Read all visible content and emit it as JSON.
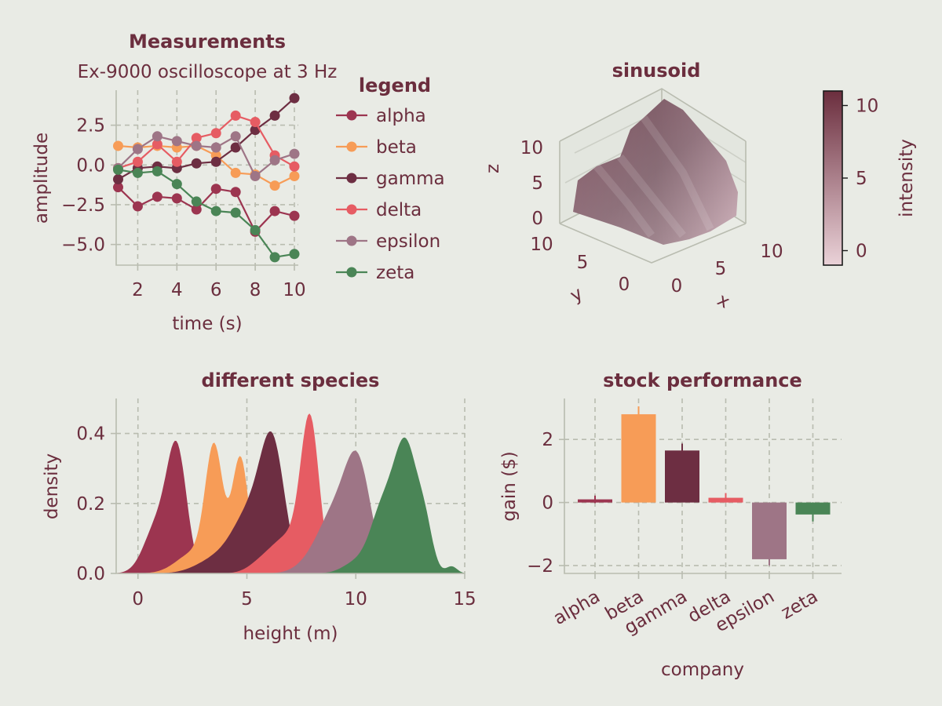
{
  "colors": {
    "background": "#e9ebe5",
    "text": "#6b2e3e",
    "grid": "#b9bcb0",
    "series": [
      "#9c3550",
      "#f79c57",
      "#6d2e42",
      "#e65c63",
      "#9e7586",
      "#4a8556"
    ]
  },
  "chart_data": [
    {
      "type": "line",
      "title": "Measurements",
      "subtitle": "Ex-9000 oscilloscope at 3 Hz",
      "xlabel": "time (s)",
      "ylabel": "amplitude",
      "xlim": [
        0.9,
        10.2
      ],
      "ylim": [
        -6.3,
        4.7
      ],
      "xticks": [
        2,
        4,
        6,
        8,
        10
      ],
      "yticks": [
        2.5,
        0.0,
        -2.5,
        -5.0
      ],
      "ytick_labels": [
        "2.5",
        "0.0",
        "−2.5",
        "−5.0"
      ],
      "grid": true,
      "legend": {
        "title": "legend",
        "placement": "outside-right"
      },
      "x": [
        1,
        2,
        3,
        4,
        5,
        6,
        7,
        8,
        9,
        10
      ],
      "series": [
        {
          "name": "alpha",
          "values": [
            -1.4,
            -2.6,
            -2.0,
            -2.1,
            -2.8,
            -1.5,
            -1.7,
            -4.2,
            -2.9,
            -3.2
          ]
        },
        {
          "name": "beta",
          "values": [
            1.2,
            1.1,
            1.2,
            1.1,
            1.2,
            0.6,
            -0.5,
            -0.6,
            -1.3,
            -0.7
          ]
        },
        {
          "name": "gamma",
          "values": [
            -0.9,
            -0.2,
            -0.1,
            -0.2,
            0.1,
            0.2,
            1.1,
            2.2,
            3.1,
            4.2
          ]
        },
        {
          "name": "delta",
          "values": [
            -0.2,
            0.2,
            1.3,
            0.2,
            1.7,
            2.0,
            3.1,
            2.7,
            0.6,
            -0.1
          ]
        },
        {
          "name": "epsilon",
          "values": [
            -0.2,
            1.0,
            1.8,
            1.5,
            1.2,
            1.1,
            1.8,
            -0.7,
            0.3,
            0.7
          ]
        },
        {
          "name": "zeta",
          "values": [
            -0.3,
            -0.5,
            -0.4,
            -1.2,
            -2.3,
            -2.9,
            -3.0,
            -4.1,
            -5.8,
            -5.6
          ]
        }
      ]
    },
    {
      "type": "surface",
      "title": "sinusoid",
      "xlabel": "x",
      "ylabel": "y",
      "zlabel": "z",
      "xlim": [
        0,
        10
      ],
      "ylim": [
        0,
        10
      ],
      "zlim": [
        0,
        10
      ],
      "ticks": [
        0,
        5,
        10
      ],
      "colorbar": {
        "label": "intensity",
        "ticks": [
          0,
          5,
          10
        ],
        "range": [
          -1,
          11
        ],
        "colors": [
          "#ead2d8",
          "#6b2e3e"
        ]
      }
    },
    {
      "type": "area",
      "title": "different species",
      "xlabel": "height (m)",
      "ylabel": "density",
      "xlim": [
        -1,
        15
      ],
      "ylim": [
        0,
        0.5
      ],
      "xticks": [
        0,
        5,
        10,
        15
      ],
      "yticks": [
        0.0,
        0.2,
        0.4
      ],
      "ytick_labels": [
        "0.0",
        "0.2",
        "0.4"
      ],
      "grid": true,
      "series": [
        {
          "bumps": [
            [
              1.8,
              0.45,
              0.33
            ],
            [
              0.9,
              0.6,
              0.14
            ]
          ]
        },
        {
          "bumps": [
            [
              3.5,
              0.4,
              0.34
            ],
            [
              4.7,
              0.38,
              0.33
            ],
            [
              2.6,
              0.8,
              0.06
            ]
          ]
        },
        {
          "bumps": [
            [
              6.2,
              0.55,
              0.32
            ],
            [
              5.2,
              0.8,
              0.17
            ],
            [
              3.6,
              0.9,
              0.04
            ]
          ]
        },
        {
          "bumps": [
            [
              7.9,
              0.42,
              0.42
            ],
            [
              6.9,
              0.7,
              0.1
            ],
            [
              5.7,
              0.6,
              0.03
            ]
          ]
        },
        {
          "bumps": [
            [
              10.1,
              0.6,
              0.3
            ],
            [
              9.0,
              0.7,
              0.15
            ],
            [
              8.0,
              0.7,
              0.03
            ]
          ]
        },
        {
          "bumps": [
            [
              12.3,
              0.55,
              0.36
            ],
            [
              11.2,
              0.55,
              0.17
            ],
            [
              13.2,
              0.35,
              0.1
            ],
            [
              14.4,
              0.25,
              0.02
            ],
            [
              10.0,
              0.6,
              0.03
            ]
          ]
        }
      ]
    },
    {
      "type": "bar",
      "title": "stock performance",
      "xlabel": "company",
      "ylabel": "gain ($)",
      "ylim": [
        -2.25,
        3.3
      ],
      "yticks": [
        2,
        0,
        -2
      ],
      "ytick_labels": [
        "2",
        "0",
        "−2"
      ],
      "grid": true,
      "categories": [
        "alpha",
        "beta",
        "gamma",
        "delta",
        "epsilon",
        "zeta"
      ],
      "values": [
        0.1,
        2.8,
        1.65,
        0.15,
        -1.8,
        -0.38
      ],
      "errors": [
        0.12,
        0.25,
        0.22,
        0.15,
        0.2,
        0.22
      ]
    }
  ]
}
